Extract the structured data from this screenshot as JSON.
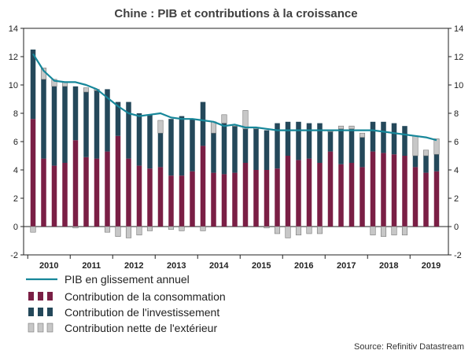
{
  "chart_data": {
    "type": "bar",
    "title": "Chine : PIB et contributions à la croissance",
    "source": "Source: Refinitiv Datastream",
    "ylim": [
      -2,
      14
    ],
    "yticks": [
      "-2",
      "0",
      "2",
      "4",
      "6",
      "8",
      "10",
      "12",
      "14"
    ],
    "grid": false,
    "legend_position": "bottom-left",
    "x_labels": [
      "2010",
      "2011",
      "2012",
      "2013",
      "2014",
      "2015",
      "2016",
      "2017",
      "2018",
      "2019"
    ],
    "categories": [
      "2010-Q1",
      "2010-Q2",
      "2010-Q3",
      "2010-Q4",
      "2011-Q1",
      "2011-Q2",
      "2011-Q3",
      "2011-Q4",
      "2012-Q1",
      "2012-Q2",
      "2012-Q3",
      "2012-Q4",
      "2013-Q1",
      "2013-Q2",
      "2013-Q3",
      "2013-Q4",
      "2014-Q1",
      "2014-Q2",
      "2014-Q3",
      "2014-Q4",
      "2015-Q1",
      "2015-Q2",
      "2015-Q3",
      "2015-Q4",
      "2016-Q1",
      "2016-Q2",
      "2016-Q3",
      "2016-Q4",
      "2017-Q1",
      "2017-Q2",
      "2017-Q3",
      "2017-Q4",
      "2018-Q1",
      "2018-Q2",
      "2018-Q3",
      "2018-Q4",
      "2019-Q1",
      "2019-Q2",
      "2019-Q3"
    ],
    "series": [
      {
        "name": "PIB en glissement annuel",
        "kind": "line",
        "color": "#17879a",
        "values": [
          12.2,
          11.0,
          10.3,
          10.2,
          10.2,
          10.0,
          9.7,
          9.1,
          8.5,
          8.0,
          7.8,
          7.9,
          8.0,
          7.7,
          7.6,
          7.6,
          7.5,
          7.4,
          7.1,
          7.2,
          7.0,
          7.0,
          6.9,
          6.8,
          6.8,
          6.8,
          6.8,
          6.8,
          6.8,
          6.8,
          6.8,
          6.8,
          6.8,
          6.7,
          6.6,
          6.5,
          6.4,
          6.3,
          6.1
        ]
      },
      {
        "name": "Contribution de la consommation",
        "kind": "bar",
        "color": "#7a1f45",
        "values": [
          7.6,
          4.8,
          4.3,
          4.5,
          6.1,
          4.9,
          4.8,
          5.3,
          6.4,
          4.8,
          4.3,
          4.1,
          4.2,
          3.6,
          3.6,
          3.9,
          5.7,
          3.8,
          3.7,
          3.8,
          4.5,
          4.0,
          4.0,
          4.1,
          5.0,
          4.7,
          4.8,
          4.5,
          5.3,
          4.4,
          4.5,
          4.2,
          5.3,
          5.2,
          5.1,
          5.0,
          4.2,
          3.8,
          3.9
        ]
      },
      {
        "name": "Contribution de l'investissement",
        "kind": "bar",
        "color": "#24485a",
        "values": [
          4.9,
          5.6,
          5.6,
          5.4,
          3.8,
          4.6,
          4.8,
          4.4,
          2.4,
          4.0,
          3.7,
          3.8,
          2.4,
          4.0,
          4.2,
          3.7,
          3.1,
          2.8,
          3.6,
          3.3,
          2.4,
          2.9,
          2.8,
          3.2,
          2.4,
          2.7,
          2.5,
          2.8,
          1.4,
          2.5,
          2.4,
          2.1,
          2.1,
          2.2,
          2.2,
          2.1,
          0.8,
          1.2,
          1.2
        ]
      },
      {
        "name": "Contribution nette de l'extérieur",
        "kind": "bar",
        "color": "#c7c7c7",
        "values": [
          -0.4,
          0.8,
          0.5,
          0.3,
          -0.1,
          0.3,
          0.1,
          -0.4,
          -0.7,
          -0.8,
          -0.6,
          -0.3,
          0.9,
          -0.2,
          -0.3,
          0.0,
          -0.3,
          0.8,
          0.6,
          0.0,
          1.3,
          0.1,
          -0.1,
          -0.5,
          -0.8,
          -0.6,
          -0.5,
          -0.5,
          0.1,
          0.2,
          0.2,
          0.3,
          -0.6,
          -0.7,
          -0.6,
          -0.6,
          1.4,
          0.4,
          1.1
        ]
      }
    ]
  }
}
